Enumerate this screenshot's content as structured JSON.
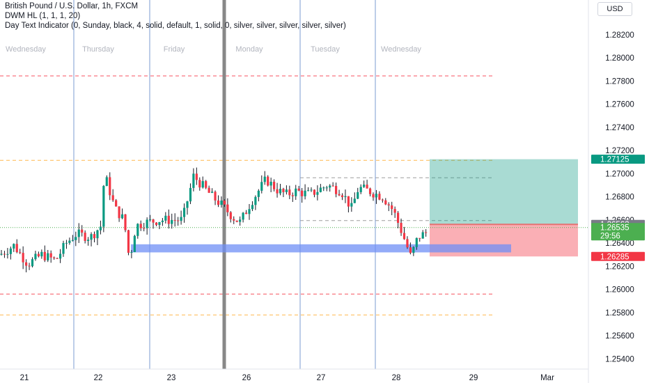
{
  "legend": {
    "symbol": "British Pound / U.S. Dollar, 1h, FXCM",
    "indicator1": "DWM HL (1, 1, 1, 20)",
    "indicator2": "Day Text Indicator (0, Sunday, black, 4, solid, default, 1, solid, 0, silver, silver, silver, silver, silver)"
  },
  "currency": "USD",
  "chart_data": {
    "type": "candlestick",
    "symbol": "GBPUSD",
    "timeframe": "1h",
    "ylim": [
      1.253,
      1.2835
    ],
    "y_ticks": [
      "1.28200",
      "1.28000",
      "1.27800",
      "1.27600",
      "1.27400",
      "1.27200",
      "1.27000",
      "1.26800",
      "1.26600",
      "1.26400",
      "1.26200",
      "1.26000",
      "1.25800",
      "1.25600",
      "1.25400"
    ],
    "x_ticks": [
      "21",
      "22",
      "23",
      "26",
      "27",
      "28",
      "29",
      "Mar"
    ],
    "weekday_labels": [
      "Wednesday",
      "Thursday",
      "Friday",
      "Monday",
      "Tuesday",
      "Wednesday"
    ],
    "price_badges": [
      {
        "value": "1.27125",
        "color": "#089981"
      },
      {
        "value": "1.26562",
        "color": "#787b86"
      },
      {
        "value": "1.26535",
        "color": "#4caf50"
      },
      {
        "value": "29:56",
        "color": "#4caf50"
      },
      {
        "value": "1.26285",
        "color": "#f23645"
      }
    ],
    "hlines": [
      {
        "y": 1.27845,
        "color": "#f7525f"
      },
      {
        "y": 1.27115,
        "color": "#ffb74d"
      },
      {
        "y": 1.26965,
        "color": "#9e9e9e"
      },
      {
        "y": 1.26595,
        "color": "#9e9e9e"
      },
      {
        "y": 1.2596,
        "color": "#f7525f"
      },
      {
        "y": 1.2578,
        "color": "#ffb74d"
      }
    ],
    "long_position": {
      "entry": 1.26562,
      "target": 1.27125,
      "stop": 1.26285
    },
    "zone": {
      "top": 1.2639,
      "bottom": 1.2632
    },
    "last_price": 1.26535,
    "colors": {
      "up": "#089981",
      "down": "#f23645",
      "wick": "#131722"
    }
  }
}
